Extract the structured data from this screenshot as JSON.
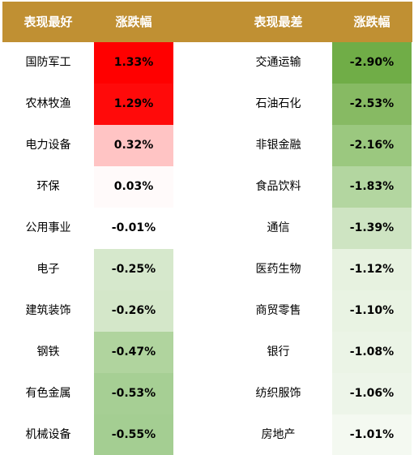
{
  "header": {
    "best_label": "表现最好",
    "change_label_left": "涨跌幅",
    "worst_label": "表现最差",
    "change_label_right": "涨跌幅",
    "background": "#c09033"
  },
  "best": [
    {
      "name": "国防军工",
      "change": "1.33%",
      "bg": "#ff0000"
    },
    {
      "name": "农林牧渔",
      "change": "1.29%",
      "bg": "#ff0a0a"
    },
    {
      "name": "电力设备",
      "change": "0.32%",
      "bg": "#ffc4c4"
    },
    {
      "name": "环保",
      "change": "0.03%",
      "bg": "#fffafa"
    },
    {
      "name": "公用事业",
      "change": "-0.01%",
      "bg": "#ffffff"
    },
    {
      "name": "电子",
      "change": "-0.25%",
      "bg": "#d6e8cc"
    },
    {
      "name": "建筑装饰",
      "change": "-0.26%",
      "bg": "#d4e7c9"
    },
    {
      "name": "钢铁",
      "change": "-0.47%",
      "bg": "#b0d49e"
    },
    {
      "name": "有色金属",
      "change": "-0.53%",
      "bg": "#a6cf94"
    },
    {
      "name": "机械设备",
      "change": "-0.55%",
      "bg": "#a4ce92"
    }
  ],
  "worst": [
    {
      "name": "交通运输",
      "change": "-2.90%",
      "bg": "#70ad47"
    },
    {
      "name": "石油石化",
      "change": "-2.53%",
      "bg": "#87ba63"
    },
    {
      "name": "非银金融",
      "change": "-2.16%",
      "bg": "#9bc87f"
    },
    {
      "name": "食品饮料",
      "change": "-1.83%",
      "bg": "#b3d6a0"
    },
    {
      "name": "通信",
      "change": "-1.39%",
      "bg": "#cee4c2"
    },
    {
      "name": "医药生物",
      "change": "-1.12%",
      "bg": "#e7f2e0"
    },
    {
      "name": "商贸零售",
      "change": "-1.10%",
      "bg": "#e9f3e3"
    },
    {
      "name": "银行",
      "change": "-1.08%",
      "bg": "#ebf4e6"
    },
    {
      "name": "纺织服饰",
      "change": "-1.06%",
      "bg": "#edf5e9"
    },
    {
      "name": "房地产",
      "change": "-1.01%",
      "bg": "#f4f9f1"
    }
  ]
}
